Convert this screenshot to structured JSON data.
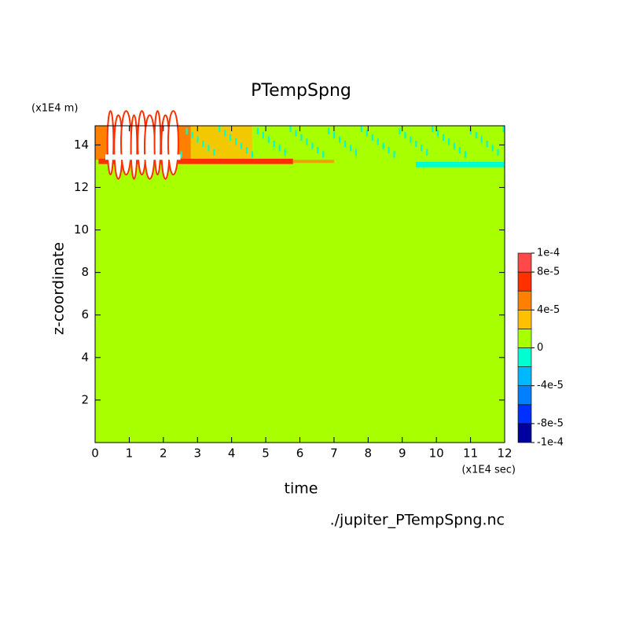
{
  "chart_data": {
    "type": "contour",
    "title": "PTempSpng",
    "x_label": "time",
    "y_label": "z-coordinate",
    "x_unit": "(x1E4 sec)",
    "y_unit": "(x1E4 m)",
    "footnote": "./jupiter_PTempSpng.nc",
    "xlim": [
      0,
      12
    ],
    "ylim": [
      0,
      14.9
    ],
    "xticks": [
      0,
      1,
      2,
      3,
      4,
      5,
      6,
      7,
      8,
      9,
      10,
      11,
      12
    ],
    "yticks": [
      2,
      4,
      6,
      8,
      10,
      12,
      14
    ],
    "levels": [
      -0.0001,
      -8e-05,
      -6e-05,
      -4e-05,
      -2e-05,
      0,
      2e-05,
      4e-05,
      6e-05,
      8e-05,
      0.0001
    ],
    "colors": [
      "#0000a0",
      "#0030ff",
      "#0080ff",
      "#00b8ff",
      "#00ffd0",
      "#a8ff00",
      "#ffc000",
      "#ff8000",
      "#ff3000",
      "#ff4848"
    ],
    "colorbar_ticks": [
      {
        "value": 0.0001,
        "label": "1e-4"
      },
      {
        "value": 8e-05,
        "label": "8e-5"
      },
      {
        "value": 4e-05,
        "label": "4e-5"
      },
      0,
      {
        "value": -4e-05,
        "label": "-4e-5"
      },
      {
        "value": -8e-05,
        "label": "-8e-5"
      },
      {
        "value": -0.0001,
        "label": "-1e-4"
      }
    ]
  }
}
